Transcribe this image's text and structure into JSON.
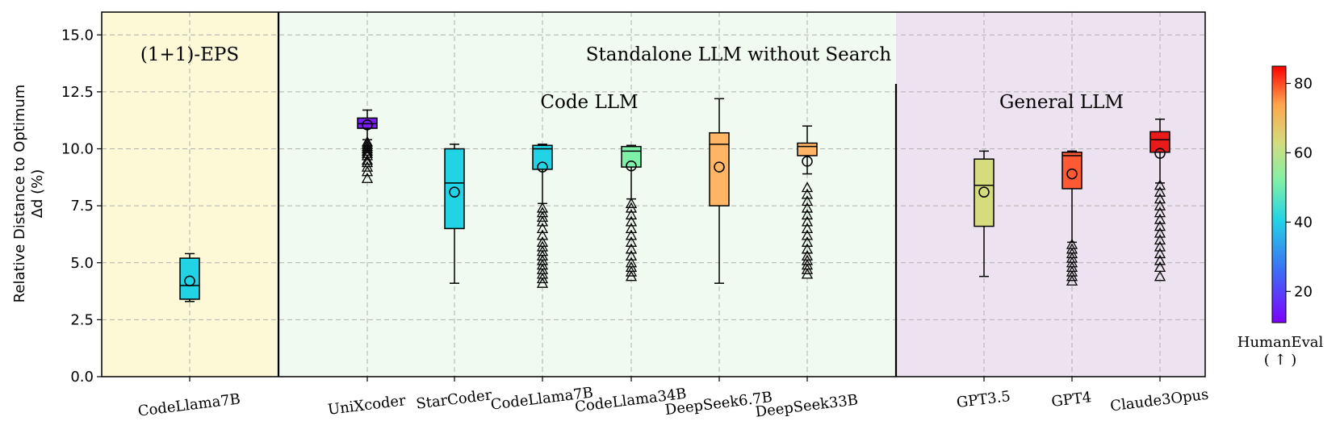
{
  "chart_data": {
    "type": "box",
    "ylabel_line1": "Relative Distance to Optimum",
    "ylabel_line2": "Δd (%)",
    "ylim": [
      0,
      16
    ],
    "yticks": [
      "0.0",
      "2.5",
      "5.0",
      "7.5",
      "10.0",
      "12.5",
      "15.0"
    ],
    "grid": true,
    "regions": [
      {
        "name": "(1+1)-EPS",
        "color": "#fdf9d6"
      },
      {
        "name": "Standalone LLM without Search",
        "color": "#f0faf0"
      },
      {
        "name": "General LLM",
        "color": "#ede2f0"
      }
    ],
    "sublabels": {
      "code": "Code LLM",
      "general": "General LLM"
    },
    "colorbar": {
      "label_line1": "HumanEval",
      "label_line2": "( ↑ )",
      "ticks": [
        "20",
        "40",
        "60",
        "80"
      ],
      "range": [
        11,
        85
      ]
    },
    "boxes": [
      {
        "label": "CodeLlama7B",
        "q1": 3.4,
        "median": 4.0,
        "q3": 5.2,
        "wlow": 3.3,
        "whigh": 5.4,
        "mean": 4.2,
        "color": "#22d3e6",
        "outliers": []
      },
      {
        "label": "UniXcoder",
        "q1": 10.9,
        "median": 11.1,
        "q3": 11.35,
        "wlow": 10.4,
        "whigh": 11.7,
        "mean": 11.05,
        "color": "#7a1cf3",
        "outliers": [
          8.7,
          9.0,
          9.2,
          9.4,
          9.5,
          9.7,
          9.8,
          9.9,
          10.0,
          10.1,
          10.2,
          10.3
        ]
      },
      {
        "label": "StarCoder",
        "q1": 6.5,
        "median": 8.5,
        "q3": 10.0,
        "wlow": 4.1,
        "whigh": 10.2,
        "mean": 8.1,
        "color": "#22d3e6",
        "outliers": []
      },
      {
        "label": "CodeLlama7B",
        "q1": 9.1,
        "median": 10.0,
        "q3": 10.15,
        "wlow": 7.6,
        "whigh": 10.2,
        "mean": 9.2,
        "color": "#22d3e6",
        "outliers": [
          4.1,
          4.3,
          4.5,
          4.7,
          4.9,
          5.1,
          5.3,
          5.5,
          5.7,
          5.9,
          6.2,
          6.5,
          6.8,
          7.0,
          7.2,
          7.4
        ]
      },
      {
        "label": "CodeLlama34B",
        "q1": 9.2,
        "median": 9.9,
        "q3": 10.1,
        "wlow": 7.8,
        "whigh": 10.15,
        "mean": 9.25,
        "color": "#7ef0a8",
        "outliers": [
          4.4,
          4.6,
          4.8,
          5.0,
          5.3,
          5.6,
          5.9,
          6.2,
          6.5,
          6.8,
          7.1,
          7.4,
          7.6
        ]
      },
      {
        "label": "DeepSeek6.7B",
        "q1": 7.5,
        "median": 10.2,
        "q3": 10.7,
        "wlow": 4.1,
        "whigh": 12.2,
        "mean": 9.2,
        "color": "#ffb466",
        "outliers": []
      },
      {
        "label": "DeepSeek33B",
        "q1": 9.7,
        "median": 10.1,
        "q3": 10.25,
        "wlow": 8.9,
        "whigh": 11.0,
        "mean": 9.45,
        "color": "#ffb466",
        "outliers": [
          4.5,
          4.7,
          4.9,
          5.1,
          5.3,
          5.6,
          5.9,
          6.2,
          6.5,
          6.8,
          7.1,
          7.4,
          7.7,
          8.0,
          8.3
        ]
      },
      {
        "label": "GPT3.5",
        "q1": 6.6,
        "median": 8.4,
        "q3": 9.55,
        "wlow": 4.4,
        "whigh": 9.9,
        "mean": 8.1,
        "color": "#d4dc7e",
        "outliers": []
      },
      {
        "label": "GPT4",
        "q1": 8.25,
        "median": 9.7,
        "q3": 9.85,
        "wlow": 5.9,
        "whigh": 9.9,
        "mean": 8.9,
        "color": "#ff5a33",
        "outliers": [
          4.2,
          4.4,
          4.6,
          4.8,
          5.0,
          5.2,
          5.4,
          5.6,
          5.8
        ]
      },
      {
        "label": "Claude3Opus",
        "q1": 9.85,
        "median": 10.4,
        "q3": 10.75,
        "wlow": 8.5,
        "whigh": 11.3,
        "mean": 9.8,
        "color": "#e81a1a",
        "outliers": [
          4.4,
          4.8,
          5.1,
          5.4,
          5.7,
          6.0,
          6.3,
          6.6,
          6.9,
          7.2,
          7.5,
          7.8,
          8.1,
          8.4
        ]
      }
    ]
  }
}
